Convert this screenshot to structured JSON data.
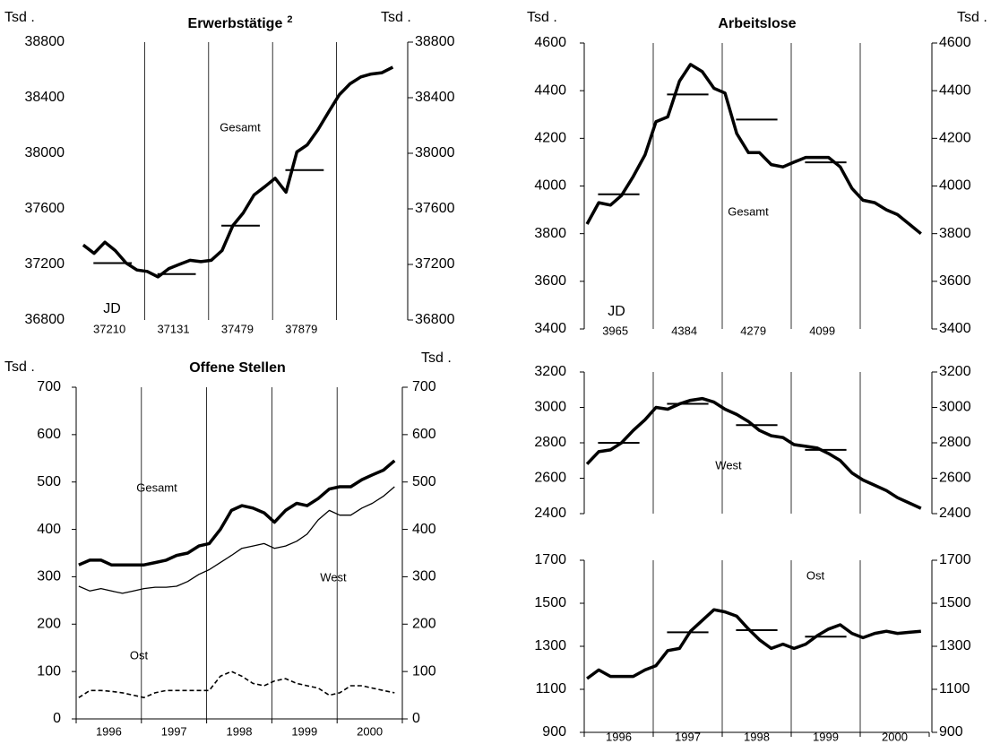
{
  "chart_data": [
    {
      "type": "line",
      "title": "Erwerbstätige",
      "title_note": "2",
      "y_label": "Tsd .",
      "y2_label": "Tsd .",
      "x": [
        1996.04,
        1996.21,
        1996.38,
        1996.54,
        1996.71,
        1996.88,
        1997.04,
        1997.21,
        1997.38,
        1997.54,
        1997.71,
        1997.88,
        1998.04,
        1998.21,
        1998.38,
        1998.54,
        1998.71,
        1998.88,
        1999.04,
        1999.21,
        1999.38,
        1999.54,
        1999.71,
        1999.88,
        2000.04,
        2000.21,
        2000.38,
        2000.54,
        2000.71,
        2000.88
      ],
      "xlim": [
        1996,
        2001
      ],
      "vlines": [
        1997,
        1998,
        1999,
        2000
      ],
      "ylim": [
        36800,
        38800
      ],
      "yticks": [
        36800,
        37200,
        37600,
        38000,
        38400,
        38800
      ],
      "y2lim": [
        36800,
        38800
      ],
      "y2ticks": [
        36800,
        37200,
        37600,
        38000,
        38400,
        38800
      ],
      "series": [
        {
          "name": "Gesamt",
          "color": "#000000",
          "values": [
            37340,
            37280,
            37360,
            37300,
            37210,
            37160,
            37150,
            37110,
            37170,
            37200,
            37230,
            37220,
            37230,
            37300,
            37480,
            37570,
            37700,
            37760,
            37820,
            37720,
            38010,
            38060,
            38170,
            38300,
            38420,
            38500,
            38550,
            38570,
            38580,
            38620
          ]
        }
      ],
      "annual_means": {
        "label": "JD",
        "x": [
          1996,
          1997,
          1998,
          1999
        ],
        "values": [
          37210,
          37131,
          37479,
          37879
        ]
      }
    },
    {
      "type": "line",
      "title": "Arbeitslose",
      "y_label": "Tsd .",
      "y2_label": "Tsd .",
      "x": [
        1996.04,
        1996.21,
        1996.38,
        1996.54,
        1996.71,
        1996.88,
        1997.04,
        1997.21,
        1997.38,
        1997.54,
        1997.71,
        1997.88,
        1998.04,
        1998.21,
        1998.38,
        1998.54,
        1998.71,
        1998.88,
        1999.04,
        1999.21,
        1999.38,
        1999.54,
        1999.71,
        1999.88,
        2000.04,
        2000.21,
        2000.38,
        2000.54,
        2000.71,
        2000.88
      ],
      "xlim": [
        1996,
        2001
      ],
      "vlines": [
        1997,
        1998,
        1999,
        2000
      ],
      "ylim": [
        3400,
        4600
      ],
      "yticks": [
        3400,
        3600,
        3800,
        4000,
        4200,
        4400,
        4600
      ],
      "y2lim": [
        3400,
        4600
      ],
      "y2ticks": [
        3400,
        3600,
        3800,
        4000,
        4200,
        4400,
        4600
      ],
      "series": [
        {
          "name": "Gesamt",
          "color": "#000000",
          "values": [
            3840,
            3930,
            3920,
            3960,
            4040,
            4130,
            4270,
            4290,
            4440,
            4510,
            4480,
            4410,
            4390,
            4220,
            4140,
            4140,
            4090,
            4080,
            4100,
            4120,
            4120,
            4120,
            4080,
            3990,
            3940,
            3930,
            3900,
            3880,
            3840,
            3800
          ]
        }
      ],
      "annual_means": {
        "label": "JD",
        "x": [
          1996,
          1997,
          1998,
          1999
        ],
        "values": [
          3965,
          4384,
          4279,
          4099
        ]
      }
    },
    {
      "type": "line",
      "title": "Offene Stellen",
      "y_label": "Tsd .",
      "y2_label": "Tsd .",
      "x": [
        1996.04,
        1996.21,
        1996.38,
        1996.54,
        1996.71,
        1996.88,
        1997.04,
        1997.21,
        1997.38,
        1997.54,
        1997.71,
        1997.88,
        1998.04,
        1998.21,
        1998.38,
        1998.54,
        1998.71,
        1998.88,
        1999.04,
        1999.21,
        1999.38,
        1999.54,
        1999.71,
        1999.88,
        2000.04,
        2000.21,
        2000.38,
        2000.54,
        2000.71,
        2000.88
      ],
      "xlim": [
        1996,
        2001
      ],
      "vlines": [
        1997,
        1998,
        1999,
        2000
      ],
      "xticks": [
        {
          "value": 1996.5,
          "label": "1996"
        },
        {
          "value": 1997.5,
          "label": "1997"
        },
        {
          "value": 1998.5,
          "label": "1998"
        },
        {
          "value": 1999.5,
          "label": "1999"
        },
        {
          "value": 2000.5,
          "label": "2000"
        }
      ],
      "ylim": [
        0,
        700
      ],
      "yticks": [
        0,
        100,
        200,
        300,
        400,
        500,
        600,
        700
      ],
      "y2lim": [
        0,
        700
      ],
      "y2ticks": [
        0,
        100,
        200,
        300,
        400,
        500,
        600,
        700
      ],
      "series": [
        {
          "name": "Gesamt",
          "color": "#000000",
          "style": "thick",
          "values": [
            325,
            335,
            335,
            325,
            325,
            325,
            325,
            330,
            335,
            345,
            350,
            365,
            370,
            400,
            440,
            450,
            445,
            435,
            415,
            440,
            455,
            450,
            465,
            485,
            490,
            490,
            505,
            515,
            525,
            545
          ]
        },
        {
          "name": "West",
          "color": "#000000",
          "style": "thin",
          "values": [
            280,
            270,
            275,
            270,
            265,
            270,
            275,
            278,
            278,
            280,
            290,
            305,
            315,
            330,
            345,
            360,
            365,
            370,
            360,
            365,
            375,
            390,
            420,
            440,
            430,
            430,
            445,
            455,
            470,
            490
          ]
        },
        {
          "name": "Ost",
          "color": "#000000",
          "style": "dashed",
          "values": [
            45,
            60,
            60,
            58,
            55,
            50,
            45,
            55,
            60,
            60,
            60,
            60,
            60,
            90,
            100,
            90,
            75,
            70,
            80,
            85,
            75,
            70,
            65,
            50,
            55,
            70,
            70,
            65,
            60,
            55
          ]
        }
      ]
    },
    {
      "type": "line",
      "x": [
        1996.04,
        1996.21,
        1996.38,
        1996.54,
        1996.71,
        1996.88,
        1997.04,
        1997.21,
        1997.38,
        1997.54,
        1997.71,
        1997.88,
        1998.04,
        1998.21,
        1998.38,
        1998.54,
        1998.71,
        1998.88,
        1999.04,
        1999.21,
        1999.38,
        1999.54,
        1999.71,
        1999.88,
        2000.04,
        2000.21,
        2000.38,
        2000.54,
        2000.71,
        2000.88
      ],
      "xlim": [
        1996,
        2001
      ],
      "vlines": [
        1997,
        1998,
        1999,
        2000
      ],
      "ylim": [
        2400,
        3200
      ],
      "yticks": [
        2400,
        2600,
        2800,
        3000,
        3200
      ],
      "y2lim": [
        2400,
        3200
      ],
      "y2ticks": [
        2400,
        2600,
        2800,
        3000,
        3200
      ],
      "series": [
        {
          "name": "West",
          "color": "#000000",
          "values": [
            2680,
            2750,
            2760,
            2800,
            2870,
            2930,
            3000,
            2990,
            3020,
            3040,
            3050,
            3030,
            2990,
            2960,
            2920,
            2870,
            2840,
            2830,
            2790,
            2780,
            2770,
            2740,
            2700,
            2630,
            2590,
            2560,
            2530,
            2490,
            2460,
            2430
          ]
        }
      ],
      "annual_means": {
        "x": [
          1996,
          1997,
          1998,
          1999
        ],
        "values": [
          2800,
          3020,
          2900,
          2760
        ]
      }
    },
    {
      "type": "line",
      "x": [
        1996.04,
        1996.21,
        1996.38,
        1996.54,
        1996.71,
        1996.88,
        1997.04,
        1997.21,
        1997.38,
        1997.54,
        1997.71,
        1997.88,
        1998.04,
        1998.21,
        1998.38,
        1998.54,
        1998.71,
        1998.88,
        1999.04,
        1999.21,
        1999.38,
        1999.54,
        1999.71,
        1999.88,
        2000.04,
        2000.21,
        2000.38,
        2000.54,
        2000.71,
        2000.88
      ],
      "xlim": [
        1996,
        2001
      ],
      "vlines": [
        1997,
        1998,
        1999,
        2000
      ],
      "xticks": [
        {
          "value": 1996.5,
          "label": "1996"
        },
        {
          "value": 1997.5,
          "label": "1997"
        },
        {
          "value": 1998.5,
          "label": "1998"
        },
        {
          "value": 1999.5,
          "label": "1999"
        },
        {
          "value": 2000.5,
          "label": "2000"
        }
      ],
      "ylim": [
        900,
        1700
      ],
      "yticks": [
        900,
        1100,
        1300,
        1500,
        1700
      ],
      "y2lim": [
        900,
        1700
      ],
      "y2ticks": [
        900,
        1100,
        1300,
        1500,
        1700
      ],
      "series": [
        {
          "name": "Ost",
          "color": "#000000",
          "values": [
            1150,
            1190,
            1160,
            1160,
            1160,
            1190,
            1210,
            1280,
            1290,
            1370,
            1420,
            1470,
            1460,
            1440,
            1380,
            1330,
            1290,
            1310,
            1290,
            1310,
            1350,
            1380,
            1400,
            1360,
            1340,
            1360,
            1370,
            1360,
            1365,
            1370
          ]
        }
      ],
      "annual_means": {
        "x": [
          1997,
          1998,
          1999
        ],
        "values": [
          1365,
          1375,
          1345
        ]
      }
    }
  ]
}
